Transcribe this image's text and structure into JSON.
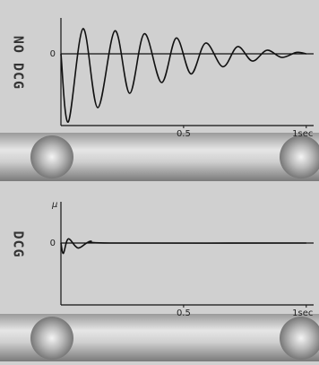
{
  "chart_data": [
    {
      "type": "line",
      "ylabel": "NO DCG",
      "color": "#111",
      "x": [
        0,
        0.03,
        0.09,
        0.15,
        0.22,
        0.28,
        0.34,
        0.41,
        0.47,
        0.53,
        0.59,
        0.66,
        0.72,
        0.78,
        0.84,
        0.9,
        0.96,
        1.0
      ],
      "values": [
        0,
        -0.95,
        0.35,
        -0.75,
        0.32,
        -0.55,
        0.28,
        -0.4,
        0.22,
        -0.28,
        0.15,
        -0.18,
        0.1,
        -0.1,
        0.05,
        -0.05,
        0.02,
        0
      ],
      "xlim": [
        0,
        1.03
      ],
      "ylim": [
        -1,
        0.5
      ],
      "yticks": [
        0
      ],
      "xticks": [
        0.5,
        {
          "value": 1,
          "label": "1sec"
        }
      ]
    },
    {
      "type": "line",
      "ylabel": "DCG",
      "yunit": "μ",
      "color": "#111",
      "x": [
        0,
        0.01,
        0.03,
        0.07,
        0.12,
        0.2,
        1.0
      ],
      "values": [
        0,
        -0.25,
        0.1,
        -0.12,
        0.04,
        0,
        0
      ],
      "xlim": [
        0,
        1.03
      ],
      "ylim": [
        -1.5,
        1
      ],
      "yticks": [
        0
      ],
      "xticks": [
        0.5,
        {
          "value": 1,
          "label": "1sec"
        }
      ]
    }
  ]
}
